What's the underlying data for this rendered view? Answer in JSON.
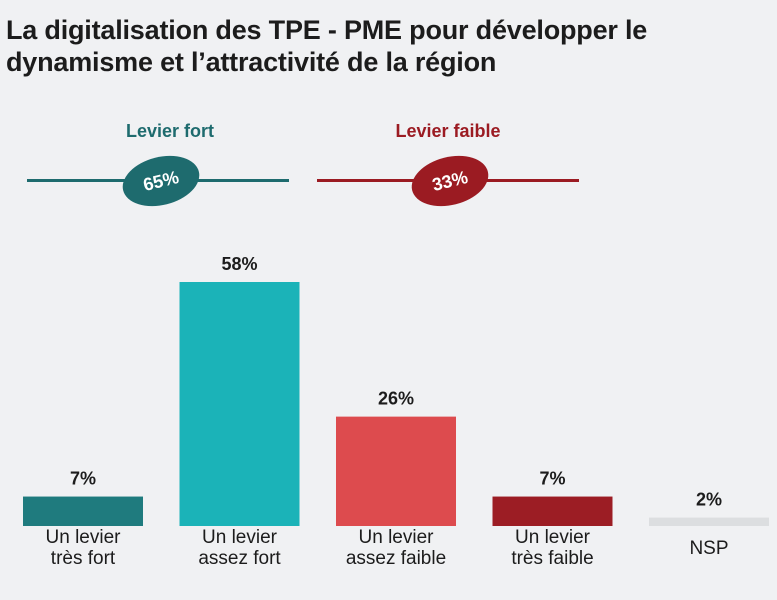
{
  "title": {
    "line1": "La digitalisation des TPE - PME pour développer le",
    "line2": "dynamisme et l’attractivité de la région"
  },
  "groups": [
    {
      "label": "Levier fort",
      "value": "65%",
      "color": "#1e6b6e"
    },
    {
      "label": "Levier faible",
      "value": "33%",
      "color": "#9b1b22"
    }
  ],
  "chart_data": {
    "type": "bar",
    "title": "La digitalisation des TPE - PME pour développer le dynamisme et l’attractivité de la région",
    "categories": [
      [
        "Un levier",
        "très fort"
      ],
      [
        "Un levier",
        "assez fort"
      ],
      [
        "Un levier",
        "assez faible"
      ],
      [
        "Un levier",
        "très faible"
      ],
      [
        "NSP"
      ]
    ],
    "values": [
      7,
      58,
      26,
      7,
      2
    ],
    "value_labels": [
      "7%",
      "58%",
      "26%",
      "7%",
      "2%"
    ],
    "colors": [
      "#1f7b7e",
      "#1bb3b8",
      "#dd4b4e",
      "#9c1d24",
      "#dcdee0"
    ],
    "ylim": [
      0,
      60
    ],
    "grid": false
  }
}
